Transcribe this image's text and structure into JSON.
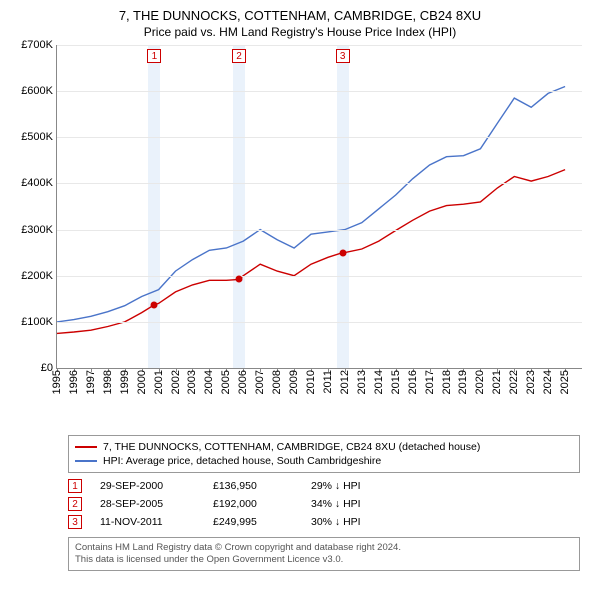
{
  "title_line1": "7, THE DUNNOCKS, COTTENHAM, CAMBRIDGE, CB24 8XU",
  "title_line2": "Price paid vs. HM Land Registry's House Price Index (HPI)",
  "chart": {
    "type": "line",
    "background_color": "#ffffff",
    "grid_color": "#e8e8e8",
    "axis_color": "#888888",
    "ylim": [
      0,
      700000
    ],
    "ytick_step": 100000,
    "yticks": [
      "£0",
      "£100K",
      "£200K",
      "£300K",
      "£400K",
      "£500K",
      "£600K",
      "£700K"
    ],
    "xlim": [
      1995,
      2026
    ],
    "xticks": [
      1995,
      1996,
      1997,
      1998,
      1999,
      2000,
      2001,
      2002,
      2003,
      2004,
      2005,
      2006,
      2007,
      2008,
      2009,
      2010,
      2011,
      2012,
      2013,
      2014,
      2015,
      2016,
      2017,
      2018,
      2019,
      2020,
      2021,
      2022,
      2023,
      2024,
      2025
    ],
    "line_width": 1.4,
    "label_fontsize": 11,
    "shade_color": "#eaf2fb",
    "marker_box_border": "#cc0000",
    "series": [
      {
        "key": "property",
        "color": "#cc0000",
        "legend": "7, THE DUNNOCKS, COTTENHAM, CAMBRIDGE, CB24 8XU (detached house)",
        "points": [
          [
            1995,
            75000
          ],
          [
            1996,
            78000
          ],
          [
            1997,
            82000
          ],
          [
            1998,
            90000
          ],
          [
            1999,
            100000
          ],
          [
            2000,
            120000
          ],
          [
            2000.75,
            136950
          ],
          [
            2001,
            140000
          ],
          [
            2002,
            165000
          ],
          [
            2003,
            180000
          ],
          [
            2004,
            190000
          ],
          [
            2005,
            190000
          ],
          [
            2005.75,
            192000
          ],
          [
            2006,
            200000
          ],
          [
            2007,
            225000
          ],
          [
            2008,
            210000
          ],
          [
            2009,
            200000
          ],
          [
            2010,
            225000
          ],
          [
            2011,
            240000
          ],
          [
            2011.87,
            249995
          ],
          [
            2012,
            250000
          ],
          [
            2013,
            258000
          ],
          [
            2014,
            275000
          ],
          [
            2015,
            298000
          ],
          [
            2016,
            320000
          ],
          [
            2017,
            340000
          ],
          [
            2018,
            352000
          ],
          [
            2019,
            355000
          ],
          [
            2020,
            360000
          ],
          [
            2021,
            390000
          ],
          [
            2022,
            415000
          ],
          [
            2023,
            405000
          ],
          [
            2024,
            415000
          ],
          [
            2025,
            430000
          ]
        ]
      },
      {
        "key": "hpi",
        "color": "#4a74c9",
        "legend": "HPI: Average price, detached house, South Cambridgeshire",
        "points": [
          [
            1995,
            100000
          ],
          [
            1996,
            105000
          ],
          [
            1997,
            112000
          ],
          [
            1998,
            122000
          ],
          [
            1999,
            135000
          ],
          [
            2000,
            155000
          ],
          [
            2001,
            170000
          ],
          [
            2002,
            210000
          ],
          [
            2003,
            235000
          ],
          [
            2004,
            255000
          ],
          [
            2005,
            260000
          ],
          [
            2006,
            275000
          ],
          [
            2007,
            300000
          ],
          [
            2008,
            278000
          ],
          [
            2009,
            260000
          ],
          [
            2010,
            290000
          ],
          [
            2011,
            295000
          ],
          [
            2012,
            300000
          ],
          [
            2013,
            315000
          ],
          [
            2014,
            345000
          ],
          [
            2015,
            375000
          ],
          [
            2016,
            410000
          ],
          [
            2017,
            440000
          ],
          [
            2018,
            458000
          ],
          [
            2019,
            460000
          ],
          [
            2020,
            475000
          ],
          [
            2021,
            530000
          ],
          [
            2022,
            585000
          ],
          [
            2023,
            565000
          ],
          [
            2024,
            595000
          ],
          [
            2025,
            610000
          ]
        ]
      }
    ],
    "sale_markers": [
      {
        "n": "1",
        "x": 2000.75,
        "y": 136950
      },
      {
        "n": "2",
        "x": 2005.75,
        "y": 192000
      },
      {
        "n": "3",
        "x": 2011.87,
        "y": 249995
      }
    ]
  },
  "legend": {
    "property_color": "#cc0000",
    "hpi_color": "#4a74c9"
  },
  "sales": [
    {
      "n": "1",
      "date": "29-SEP-2000",
      "price": "£136,950",
      "pct": "29% ↓ HPI"
    },
    {
      "n": "2",
      "date": "28-SEP-2005",
      "price": "£192,000",
      "pct": "34% ↓ HPI"
    },
    {
      "n": "3",
      "date": "11-NOV-2011",
      "price": "£249,995",
      "pct": "30% ↓ HPI"
    }
  ],
  "footer_line1": "Contains HM Land Registry data © Crown copyright and database right 2024.",
  "footer_line2": "This data is licensed under the Open Government Licence v3.0."
}
